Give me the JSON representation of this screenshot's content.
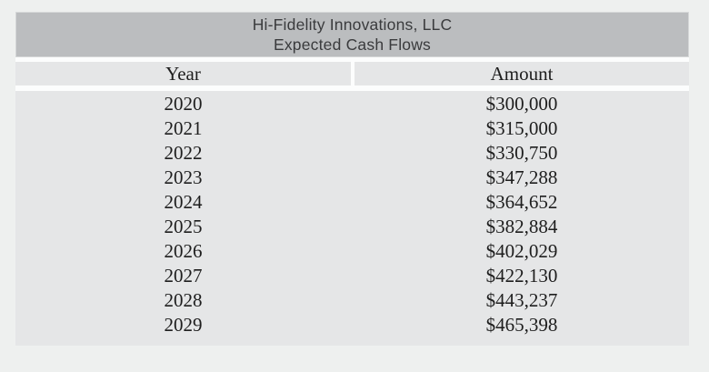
{
  "page": {
    "background": "#eef0ef"
  },
  "table": {
    "title_line1": "Hi-Fidelity Innovations, LLC",
    "title_line2": "Expected Cash Flows",
    "columns": {
      "year": "Year",
      "amount": "Amount"
    },
    "rows": [
      {
        "year": "2020",
        "amount": "$300,000"
      },
      {
        "year": "2021",
        "amount": "$315,000"
      },
      {
        "year": "2022",
        "amount": "$330,750"
      },
      {
        "year": "2023",
        "amount": "$347,288"
      },
      {
        "year": "2024",
        "amount": "$364,652"
      },
      {
        "year": "2025",
        "amount": "$382,884"
      },
      {
        "year": "2026",
        "amount": "$402,029"
      },
      {
        "year": "2027",
        "amount": "$422,130"
      },
      {
        "year": "2028",
        "amount": "$443,237"
      },
      {
        "year": "2029",
        "amount": "$465,398"
      }
    ],
    "colors": {
      "page_bg": "#eef0ef",
      "title_band_bg": "#bbbdbf",
      "row_bg": "#e5e6e7",
      "gap_bg": "#fcfdfd",
      "title_text": "#3a3b3d",
      "body_text": "#1e1e1e"
    }
  },
  "chart_data": {
    "type": "table",
    "title": "Hi-Fidelity Innovations, LLC",
    "subtitle": "Expected Cash Flows",
    "columns": [
      "Year",
      "Amount"
    ],
    "x": [
      2020,
      2021,
      2022,
      2023,
      2024,
      2025,
      2026,
      2027,
      2028,
      2029
    ],
    "values": [
      300000,
      315000,
      330750,
      347288,
      364652,
      382884,
      402029,
      422130,
      443237,
      465398
    ]
  }
}
